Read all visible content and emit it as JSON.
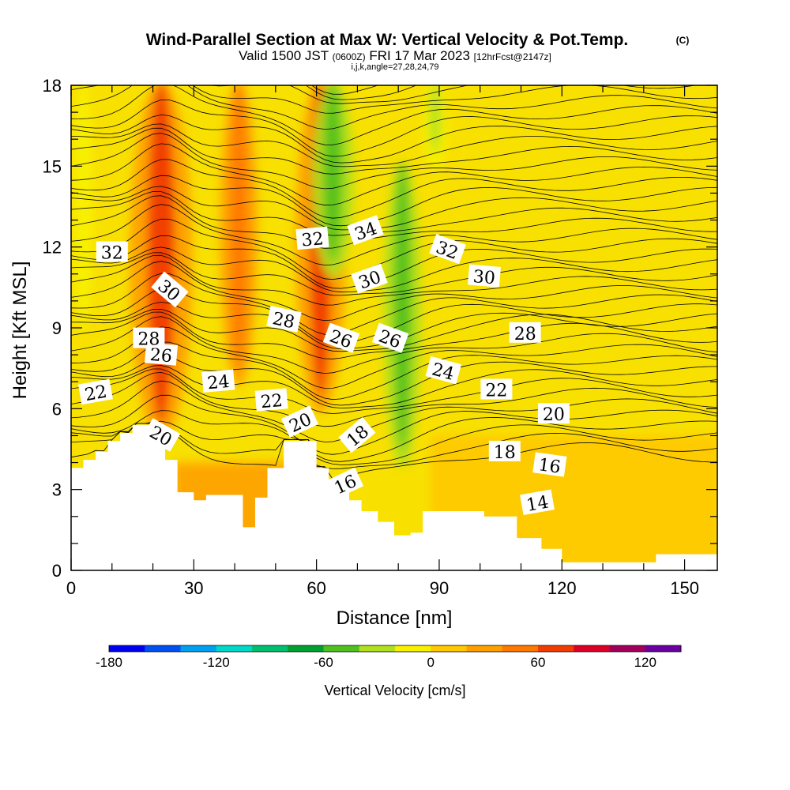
{
  "chart_data": {
    "type": "heatmap",
    "title": "Wind-Parallel Section at Max W: Vertical Velocity & Pot.Temp.",
    "copyright": "(C)",
    "subtitle": {
      "valid_prefix": "Valid 1500 JST",
      "utc": "(0600Z)",
      "date": "FRI 17 Mar 2023",
      "forecast": "[12hrFcst@2147z]"
    },
    "indices": "i,j,k,angle=27,28,24,79",
    "xlabel": "Distance [nm]",
    "ylabel": "Height [Kft MSL]",
    "xlim": [
      0,
      158
    ],
    "ylim": [
      0,
      18
    ],
    "x_ticks": [
      "0",
      "30",
      "60",
      "90",
      "120",
      "150"
    ],
    "y_ticks": [
      "0",
      "3",
      "6",
      "9",
      "12",
      "15",
      "18"
    ],
    "colorbar": {
      "label": "Vertical Velocity [cm/s]",
      "ticks": [
        "-180",
        "-120",
        "-60",
        "0",
        "60",
        "120"
      ],
      "range": [
        -180,
        140
      ],
      "colors": [
        "#0000f0",
        "#0050f0",
        "#00a0f0",
        "#00d8c8",
        "#00c070",
        "#00a030",
        "#50c020",
        "#b0e020",
        "#f8f000",
        "#ffc800",
        "#ffa000",
        "#ff7800",
        "#f03c00",
        "#dc0028",
        "#a0005a",
        "#6a00a0"
      ]
    },
    "theta_contour_labels": [
      "14",
      "16",
      "16",
      "18",
      "18",
      "20",
      "20",
      "20",
      "22",
      "22",
      "22",
      "24",
      "24",
      "26",
      "26",
      "26",
      "28",
      "28",
      "28",
      "30",
      "30",
      "30",
      "32",
      "32",
      "32",
      "34"
    ],
    "terrain_kft": [
      [
        0,
        3.8
      ],
      [
        3,
        4.1
      ],
      [
        6,
        4.4
      ],
      [
        9,
        4.8
      ],
      [
        12,
        5.1
      ],
      [
        15,
        5.4
      ],
      [
        21,
        5.0
      ],
      [
        23,
        4.1
      ],
      [
        26,
        2.9
      ],
      [
        30,
        2.6
      ],
      [
        33,
        2.8
      ],
      [
        37,
        2.8
      ],
      [
        42,
        1.6
      ],
      [
        45,
        2.7
      ],
      [
        48,
        3.8
      ],
      [
        52,
        4.8
      ],
      [
        57,
        4.8
      ],
      [
        60,
        3.8
      ],
      [
        63,
        3.1
      ],
      [
        68,
        2.6
      ],
      [
        71,
        2.2
      ],
      [
        75,
        1.8
      ],
      [
        79,
        1.3
      ],
      [
        83,
        1.4
      ],
      [
        86,
        2.2
      ],
      [
        94,
        2.2
      ],
      [
        101,
        2.0
      ],
      [
        109,
        1.2
      ],
      [
        115,
        0.8
      ],
      [
        120,
        0.3
      ],
      [
        125,
        0.3
      ],
      [
        131,
        0.3
      ],
      [
        137,
        0.3
      ],
      [
        143,
        0.6
      ],
      [
        158,
        0.6
      ]
    ],
    "w_features": [
      {
        "x": 22,
        "y_bottom": 5.0,
        "y_top": 18,
        "w_cms": 75
      },
      {
        "x": 41,
        "y_bottom": 7.0,
        "y_top": 18,
        "w_cms": 45
      },
      {
        "x": 61,
        "y_bottom": 6.0,
        "y_top": 18,
        "w_cms": 60
      },
      {
        "x": 64,
        "y_bottom": 11.0,
        "y_top": 18,
        "w_cms": -50
      },
      {
        "x": 81,
        "y_bottom": 4.0,
        "y_top": 15,
        "w_cms": -45
      },
      {
        "x": 89,
        "y_bottom": 15.0,
        "y_top": 18,
        "w_cms": -30
      },
      {
        "x": 3,
        "y_bottom": 9.0,
        "y_top": 18,
        "w_cms": -15
      }
    ]
  }
}
